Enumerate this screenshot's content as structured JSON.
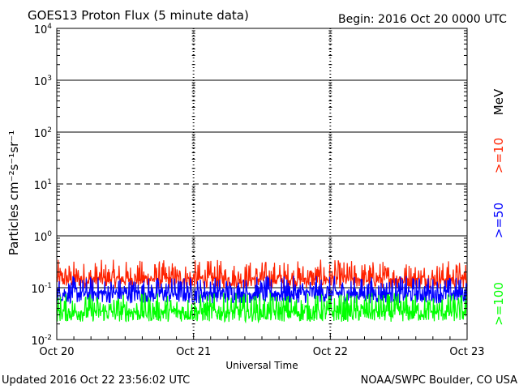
{
  "header": {
    "title": "GOES13 Proton Flux (5 minute data)",
    "begin": "Begin: 2016 Oct 20 0000 UTC"
  },
  "footer": {
    "updated": "Updated 2016 Oct 22 23:56:02 UTC",
    "credit": "NOAA/SWPC Boulder, CO USA"
  },
  "chart_data": {
    "type": "line",
    "title": "GOES13 Proton Flux (5 minute data)",
    "xlabel": "Universal Time",
    "ylabel": "Particles cm⁻²s⁻¹sr⁻¹",
    "y_scale": "log",
    "ylim": [
      0.01,
      10000
    ],
    "xlim": [
      "2016-10-20",
      "2016-10-23"
    ],
    "x_ticks": [
      "Oct 20",
      "Oct 21",
      "Oct 22",
      "Oct 23"
    ],
    "y_ticks": [
      {
        "base": "10",
        "exp": "4"
      },
      {
        "base": "10",
        "exp": "3"
      },
      {
        "base": "10",
        "exp": "2"
      },
      {
        "base": "10",
        "exp": "1"
      },
      {
        "base": "10",
        "exp": "0"
      },
      {
        "base": "10",
        "exp": "-1"
      },
      {
        "base": "10",
        "exp": "-2"
      }
    ],
    "reference_lines": [
      {
        "value": 1000,
        "style": "solid"
      },
      {
        "value": 100,
        "style": "solid"
      },
      {
        "value": 10,
        "style": "dashed"
      },
      {
        "value": 1,
        "style": "solid"
      },
      {
        "value": 0.1,
        "style": "solid"
      }
    ],
    "grid": "dashed vertical lines at day boundaries",
    "legend_unit": "MeV",
    "series": [
      {
        "name": ">=10",
        "color": "#ff2200",
        "typical": 0.15,
        "range": [
          0.1,
          0.35
        ]
      },
      {
        "name": ">=50",
        "color": "#0000ff",
        "typical": 0.08,
        "range": [
          0.05,
          0.17
        ]
      },
      {
        "name": ">=100",
        "color": "#00ff00",
        "typical": 0.035,
        "range": [
          0.022,
          0.08
        ]
      }
    ]
  }
}
